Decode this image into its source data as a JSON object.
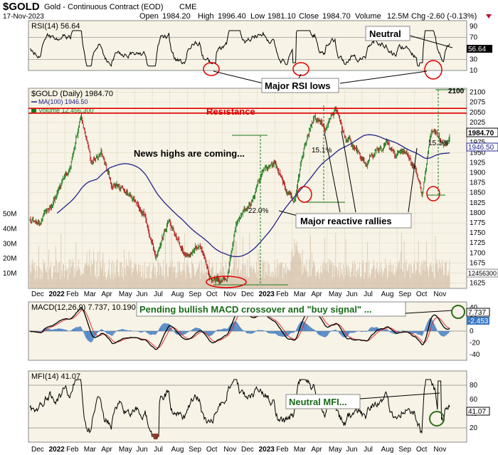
{
  "header": {
    "symbol": "$GOLD",
    "name": "Gold - Continuous Contract (EOD)",
    "exchange": "CME",
    "date": "17-Nov-2023",
    "open_label": "Open",
    "open": "1984.20",
    "high_label": "High",
    "high": "1996.40",
    "low_label": "Low",
    "low": "1981.10",
    "close_label": "Close",
    "close": "1984.70",
    "volume_label": "Volume",
    "volume": "12.5M",
    "chg_label": "Chg",
    "chg": "-2.60 (-0.13%)"
  },
  "colors": {
    "up": "#1a7a1a",
    "down": "#b01818",
    "ma": "#22228a",
    "resistance": "#e00000",
    "rsi": "#000000",
    "panel_bg": "#f7f3e6",
    "volume": "#d4bfa8",
    "macd_hist": "#3a78c0",
    "signal": "#e03030",
    "annotation_circle": "#e00000",
    "mfi_fill_low": "#8a3a2a",
    "macd_circle": "#2f6b1a"
  },
  "chart_data": [
    {
      "panel": "rsi",
      "type": "line",
      "title": "RSI(14) 56.64",
      "last_value": "56.64",
      "ylim": [
        10,
        100
      ],
      "yticks": [
        "90",
        "70",
        "50",
        "30",
        "10"
      ],
      "reference_lines": [
        70,
        30
      ],
      "annotations": [
        "Neutral",
        "Major RSI lows"
      ]
    },
    {
      "panel": "price",
      "type": "candlestick",
      "title": "$GOLD (Daily) 1984.70",
      "legend": [
        "MA(100) 1946.50",
        "Volume 12,456,300"
      ],
      "ylim": [
        1612,
        2110
      ],
      "yticks": [
        "2100",
        "2075",
        "2050",
        "2025",
        "2000",
        "1975",
        "1950",
        "1925",
        "1900",
        "1875",
        "1850",
        "1825",
        "1800",
        "1775",
        "1750",
        "1725",
        "1700",
        "1675",
        "1650",
        "1625"
      ],
      "volume_ticks": [
        "50M",
        "40M",
        "30M",
        "20M",
        "10M"
      ],
      "last_price_tag": "1984.70",
      "ma_tag": "1946.50",
      "volume_tag": "12456300",
      "resistance_levels": [
        2048,
        2060
      ],
      "resistance_label": "Resistance",
      "x_months": [
        "Dec",
        "2022",
        "Feb",
        "Mar",
        "Apr",
        "May",
        "Jun",
        "Jul",
        "Aug",
        "Sep",
        "Oct",
        "Nov",
        "Dec",
        "2023",
        "Feb",
        "Mar",
        "Apr",
        "May",
        "Jun",
        "Jul",
        "Aug",
        "Sep",
        "Oct",
        "Nov"
      ],
      "percent_labels": [
        "22.0%",
        "15.1%",
        "15.1%"
      ],
      "marker_2100": "2100",
      "annotations": [
        "News highs are coming...",
        "Major reactive rallies"
      ],
      "anchors": [
        {
          "d": 0,
          "p": 1790
        },
        {
          "d": 15,
          "p": 1770
        },
        {
          "d": 40,
          "p": 1850
        },
        {
          "d": 60,
          "p": 1910
        },
        {
          "d": 75,
          "p": 2040
        },
        {
          "d": 90,
          "p": 1920
        },
        {
          "d": 105,
          "p": 1950
        },
        {
          "d": 120,
          "p": 1870
        },
        {
          "d": 150,
          "p": 1840
        },
        {
          "d": 170,
          "p": 1800
        },
        {
          "d": 185,
          "p": 1700
        },
        {
          "d": 205,
          "p": 1780
        },
        {
          "d": 230,
          "p": 1680
        },
        {
          "d": 250,
          "p": 1720
        },
        {
          "d": 270,
          "p": 1630
        },
        {
          "d": 290,
          "p": 1640
        },
        {
          "d": 305,
          "p": 1780
        },
        {
          "d": 325,
          "p": 1820
        },
        {
          "d": 345,
          "p": 1900
        },
        {
          "d": 360,
          "p": 1930
        },
        {
          "d": 380,
          "p": 1850
        },
        {
          "d": 390,
          "p": 1830
        },
        {
          "d": 405,
          "p": 1970
        },
        {
          "d": 420,
          "p": 2040
        },
        {
          "d": 435,
          "p": 2010
        },
        {
          "d": 450,
          "p": 2055
        },
        {
          "d": 465,
          "p": 1990
        },
        {
          "d": 480,
          "p": 1960
        },
        {
          "d": 495,
          "p": 1920
        },
        {
          "d": 510,
          "p": 1955
        },
        {
          "d": 525,
          "p": 1970
        },
        {
          "d": 540,
          "p": 1935
        },
        {
          "d": 555,
          "p": 1945
        },
        {
          "d": 570,
          "p": 1900
        },
        {
          "d": 578,
          "p": 1830
        },
        {
          "d": 590,
          "p": 1990
        },
        {
          "d": 598,
          "p": 2005
        },
        {
          "d": 610,
          "p": 1960
        },
        {
          "d": 620,
          "p": 1985
        }
      ]
    },
    {
      "panel": "macd",
      "type": "line",
      "title": "MACD(12,26,9) 7.737, 10.190, -2.453",
      "values": [
        "7.737",
        "10.190",
        "-2.453"
      ],
      "yticks": [
        "40",
        "20",
        "0",
        "-20",
        "-40"
      ],
      "last_tags": [
        "7.737",
        "-2.453"
      ],
      "annotation": "Pending bullish MACD crossover and \"buy signal\" ..."
    },
    {
      "panel": "mfi",
      "type": "line",
      "title": "MFI(14) 41.07",
      "last_value": "41.07",
      "ylim": [
        0,
        100
      ],
      "yticks": [
        "80",
        "60",
        "40",
        "20"
      ],
      "reference_lines": [
        80,
        20
      ],
      "annotation": "Neutral MFI..."
    }
  ]
}
